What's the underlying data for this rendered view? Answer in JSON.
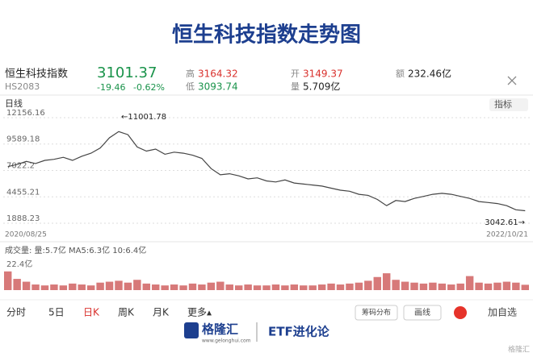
{
  "title": "恒生科技指数走势图",
  "quote": {
    "name": "恒生科技指数",
    "code": "HS2083",
    "price": "3101.37",
    "change": "-19.46",
    "change_pct": "-0.62%",
    "high_label": "高",
    "high": "3164.32",
    "low_label": "低",
    "low": "3093.74",
    "open_label": "开",
    "open": "3149.37",
    "volume_label": "量",
    "volume": "5.709亿",
    "amount_label": "额",
    "amount": "232.46亿"
  },
  "period_label": "日线",
  "indicator_button": "指标",
  "chart_data": [
    {
      "type": "line",
      "color": "#444444",
      "ylim": [
        1888.23,
        12156.16
      ],
      "yticks": [
        1888.23,
        4455.21,
        7022.2,
        9589.18,
        12156.16
      ],
      "grid": true,
      "x_start": "2020/08/25",
      "x_end": "2022/10/21",
      "annotations": [
        "←11001.78",
        "3042.61→"
      ],
      "values": [
        7400,
        7600,
        7900,
        7700,
        8000,
        8100,
        8300,
        8000,
        8400,
        8700,
        9200,
        10200,
        10800,
        10500,
        9300,
        8900,
        9100,
        8600,
        8800,
        8700,
        8500,
        8200,
        7200,
        6600,
        6700,
        6500,
        6200,
        6300,
        6000,
        5900,
        6100,
        5800,
        5700,
        5600,
        5500,
        5300,
        5100,
        5000,
        4700,
        4600,
        4200,
        3600,
        4100,
        4000,
        4300,
        4500,
        4700,
        4800,
        4700,
        4500,
        4300,
        4000,
        3900,
        3800,
        3600,
        3200,
        3101.37
      ]
    },
    {
      "type": "bar",
      "title": "成交量: 量:5.7亿 MA5:6.3亿 10:6.4亿",
      "color": "#c94c4c",
      "ylim": [
        0,
        22.4
      ],
      "yticks": [
        {
          "value": 22.4,
          "label": "22.4亿"
        }
      ],
      "values": [
        20,
        12,
        9,
        6,
        5,
        6,
        5,
        7,
        6,
        5,
        8,
        9,
        10,
        8,
        11,
        7,
        6,
        5,
        6,
        5,
        7,
        6,
        8,
        9,
        6,
        5,
        6,
        5,
        5,
        6,
        5,
        6,
        5,
        5,
        6,
        7,
        6,
        7,
        8,
        10,
        14,
        18,
        11,
        9,
        8,
        7,
        8,
        7,
        6,
        7,
        15,
        8,
        7,
        8,
        9,
        8,
        5.7
      ]
    }
  ],
  "tabs": [
    "分时",
    "5日",
    "日K",
    "周K",
    "月K",
    "更多▴"
  ],
  "buttons": [
    "筹码分布",
    "画线",
    "加自选"
  ],
  "footer": {
    "brand": "格隆汇",
    "site": "www.gelonghui.com",
    "column": "ETF进化论",
    "watermark": "格隆汇"
  }
}
